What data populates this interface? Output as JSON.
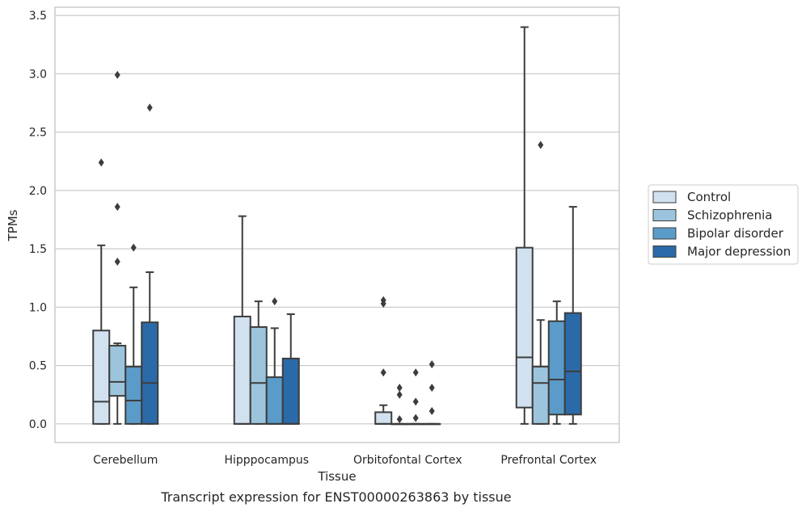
{
  "caption": "Transcript expression for ENST00000263863 by tissue",
  "chart_data": {
    "type": "boxplot",
    "xlabel": "Tissue",
    "ylabel": "TPMs",
    "ylim": [
      -0.16,
      3.57
    ],
    "yticks": [
      "0.0",
      "0.5",
      "1.0",
      "1.5",
      "2.0",
      "2.5",
      "3.0",
      "3.5"
    ],
    "grid": "horizontal",
    "legend_position": "right",
    "categories": [
      "Cerebellum",
      "Hipppocampus",
      "Orbitofontal Cortex",
      "Prefrontal Cortex"
    ],
    "series": [
      {
        "name": "Control",
        "color": "#d1e1f0",
        "boxes": [
          {
            "whislo": 0.0,
            "q1": 0.0,
            "med": 0.19,
            "q3": 0.8,
            "whishi": 1.53,
            "fliers": [
              2.24
            ]
          },
          {
            "whislo": 0.0,
            "q1": 0.0,
            "med": 0.0,
            "q3": 0.92,
            "whishi": 1.78,
            "fliers": []
          },
          {
            "whislo": 0.0,
            "q1": 0.0,
            "med": 0.0,
            "q3": 0.1,
            "whishi": 0.16,
            "fliers": [
              0.44,
              1.03,
              1.06
            ]
          },
          {
            "whislo": 0.0,
            "q1": 0.14,
            "med": 0.57,
            "q3": 1.51,
            "whishi": 3.4,
            "fliers": []
          }
        ]
      },
      {
        "name": "Schizophrenia",
        "color": "#9cc5dd",
        "boxes": [
          {
            "whislo": 0.0,
            "q1": 0.24,
            "med": 0.36,
            "q3": 0.67,
            "whishi": 0.69,
            "fliers": [
              1.39,
              1.86,
              2.99
            ]
          },
          {
            "whislo": 0.0,
            "q1": 0.0,
            "med": 0.35,
            "q3": 0.83,
            "whishi": 1.05,
            "fliers": []
          },
          {
            "whislo": 0.0,
            "q1": 0.0,
            "med": 0.0,
            "q3": 0.0,
            "whishi": 0.0,
            "fliers": [
              0.04,
              0.25,
              0.31
            ]
          },
          {
            "whislo": 0.0,
            "q1": 0.0,
            "med": 0.35,
            "q3": 0.49,
            "whishi": 0.89,
            "fliers": [
              2.39
            ]
          }
        ]
      },
      {
        "name": "Bipolar disorder",
        "color": "#5b9bc9",
        "boxes": [
          {
            "whislo": 0.0,
            "q1": 0.0,
            "med": 0.2,
            "q3": 0.49,
            "whishi": 1.17,
            "fliers": [
              1.51
            ]
          },
          {
            "whislo": 0.0,
            "q1": 0.0,
            "med": 0.0,
            "q3": 0.4,
            "whishi": 0.82,
            "fliers": [
              1.05
            ]
          },
          {
            "whislo": 0.0,
            "q1": 0.0,
            "med": 0.0,
            "q3": 0.0,
            "whishi": 0.0,
            "fliers": [
              0.05,
              0.19,
              0.44
            ]
          },
          {
            "whislo": 0.0,
            "q1": 0.08,
            "med": 0.38,
            "q3": 0.88,
            "whishi": 1.05,
            "fliers": []
          }
        ]
      },
      {
        "name": "Major depression",
        "color": "#2b6aa8",
        "boxes": [
          {
            "whislo": 0.0,
            "q1": 0.0,
            "med": 0.35,
            "q3": 0.87,
            "whishi": 1.3,
            "fliers": [
              2.71
            ]
          },
          {
            "whislo": 0.0,
            "q1": 0.0,
            "med": 0.0,
            "q3": 0.56,
            "whishi": 0.94,
            "fliers": []
          },
          {
            "whislo": 0.0,
            "q1": 0.0,
            "med": 0.0,
            "q3": 0.0,
            "whishi": 0.0,
            "fliers": [
              0.11,
              0.31,
              0.51
            ]
          },
          {
            "whislo": 0.0,
            "q1": 0.08,
            "med": 0.45,
            "q3": 0.95,
            "whishi": 1.86,
            "fliers": []
          }
        ]
      }
    ]
  }
}
